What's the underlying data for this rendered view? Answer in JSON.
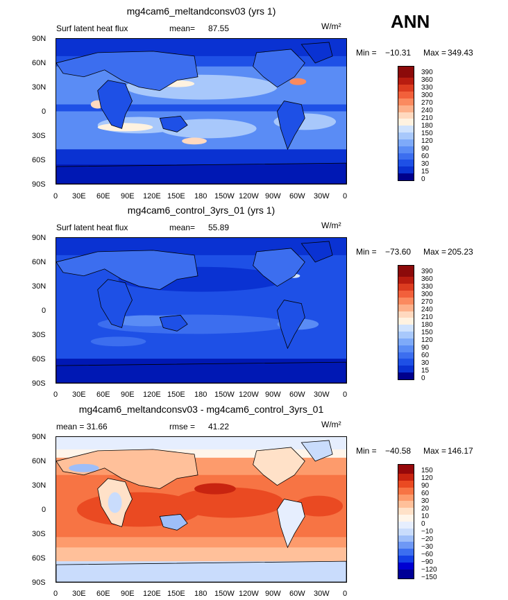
{
  "season": "ANN",
  "colors": {
    "abs_scale": [
      "#00008c",
      "#0018b4",
      "#0a32d2",
      "#1e50e6",
      "#3c6eef",
      "#5a8cf5",
      "#7eaaf9",
      "#a8c8fb",
      "#cfe2fd",
      "#fff2e0",
      "#ffd9bf",
      "#fdb08a",
      "#fb8a5f",
      "#f2603b",
      "#dc3c20",
      "#b81c10",
      "#8c0a0a"
    ],
    "diff_scale": [
      "#000096",
      "#0000d2",
      "#1440e6",
      "#3c6ef0",
      "#6e98f5",
      "#9ebef9",
      "#c9dcfc",
      "#e6eefe",
      "#fff5ea",
      "#ffe1c8",
      "#ffc09a",
      "#fd9b6c",
      "#f77444",
      "#ea4a22",
      "#c82410",
      "#96080a"
    ]
  },
  "panels": [
    {
      "title": "mg4cam6_meltandconsv03 (yrs 1)",
      "left_label": "Surf latent heat flux",
      "stat_label": "mean=",
      "stat_value": "87.55",
      "units": "W/m²",
      "min_label": "Min = ",
      "min_value": "−10.31",
      "max_label": "Max = ",
      "max_value": "349.43",
      "colorbar_levels": [
        "390",
        "360",
        "330",
        "300",
        "270",
        "240",
        "210",
        "180",
        "150",
        "120",
        "90",
        "60",
        "30",
        "15",
        "0"
      ]
    },
    {
      "title": "mg4cam6_control_3yrs_01 (yrs 1)",
      "left_label": "Surf latent heat flux",
      "stat_label": "mean=",
      "stat_value": "55.89",
      "units": "W/m²",
      "min_label": "Min = ",
      "min_value": "−73.60",
      "max_label": "Max = ",
      "max_value": "205.23",
      "colorbar_levels": [
        "390",
        "360",
        "330",
        "300",
        "270",
        "240",
        "210",
        "180",
        "150",
        "120",
        "90",
        "60",
        "30",
        "15",
        "0"
      ]
    },
    {
      "title": "mg4cam6_meltandconsv03 - mg4cam6_control_3yrs_01",
      "left_label": "mean =  31.66",
      "stat_label": "rmse =",
      "stat_value": "41.22",
      "units": "W/m²",
      "min_label": "Min = ",
      "min_value": "−40.58",
      "max_label": "Max = ",
      "max_value": "146.17",
      "colorbar_levels": [
        "150",
        "120",
        "90",
        "60",
        "30",
        "20",
        "10",
        "0",
        "−10",
        "−20",
        "−30",
        "−60",
        "−90",
        "−120",
        "−150"
      ]
    }
  ],
  "lat_ticks": [
    "90N",
    "60N",
    "30N",
    "0",
    "30S",
    "60S",
    "90S"
  ],
  "lon_ticks": [
    "0",
    "30E",
    "60E",
    "90E",
    "120E",
    "150E",
    "180",
    "150W",
    "120W",
    "90W",
    "60W",
    "30W",
    "0"
  ]
}
